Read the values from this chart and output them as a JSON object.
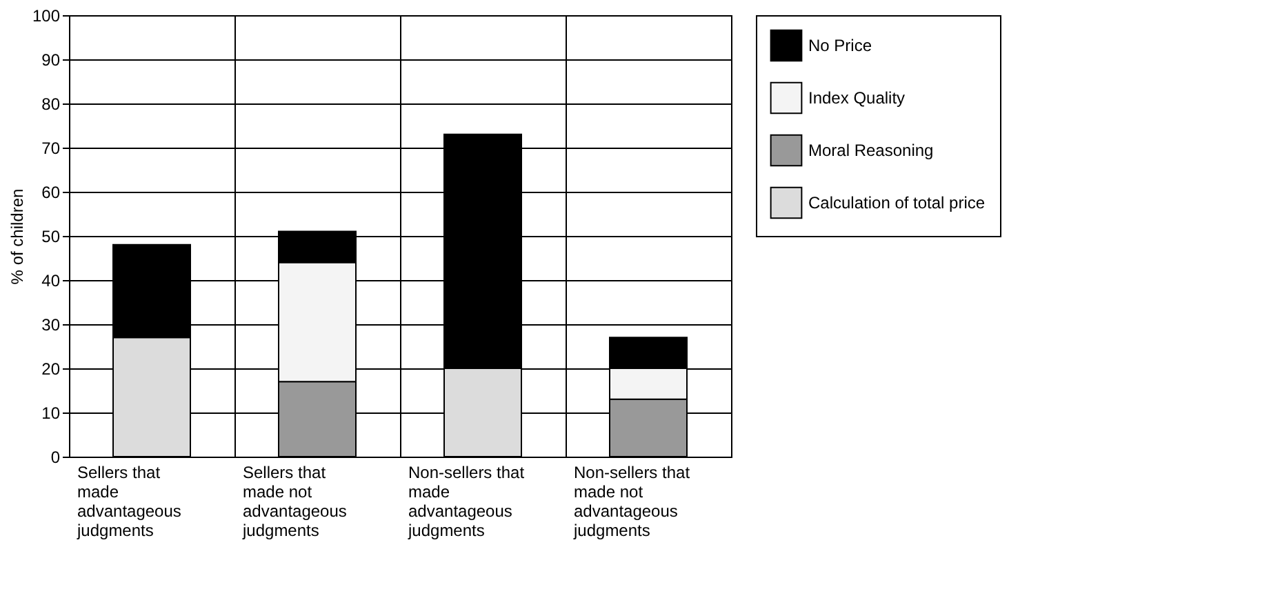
{
  "chart_data": {
    "type": "bar",
    "stacked": true,
    "ylabel": "% of children",
    "categories": [
      "Sellers that made advantageous judgments",
      "Sellers that made not advantageous judgments",
      "Non-sellers that made advantageous judgments",
      "Non-sellers that made not advantageous judgments"
    ],
    "series": [
      {
        "name": "Calculation of total price",
        "color": "#dcdcdc",
        "values": [
          27,
          null,
          20,
          null
        ]
      },
      {
        "name": "Moral Reasoning",
        "color": "#999999",
        "values": [
          null,
          17,
          null,
          13
        ]
      },
      {
        "name": "Index Quality",
        "color": "#f4f4f4",
        "values": [
          null,
          27,
          null,
          7
        ]
      },
      {
        "name": "No Price",
        "color": "#000000",
        "values": [
          21,
          7,
          53,
          7
        ]
      }
    ],
    "ylim": [
      0,
      100
    ],
    "yticks": [
      0,
      10,
      20,
      30,
      40,
      50,
      60,
      70,
      80,
      90,
      100
    ],
    "grid": true,
    "legend": "top right"
  }
}
